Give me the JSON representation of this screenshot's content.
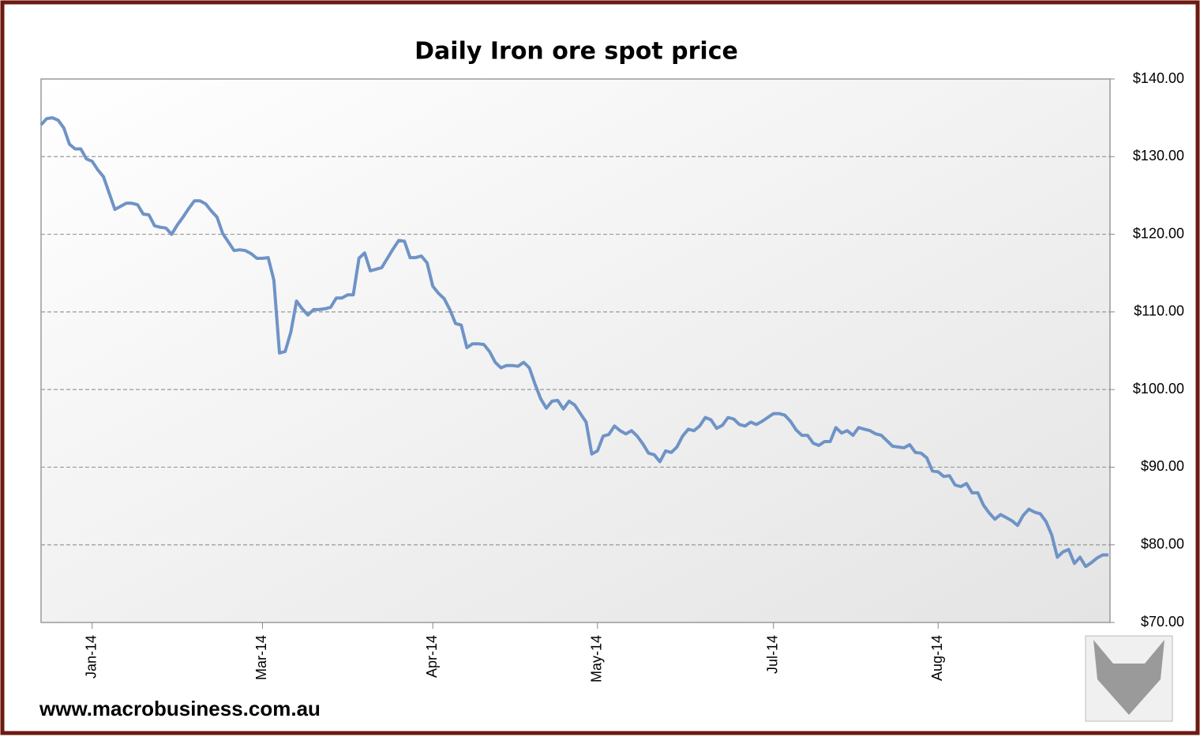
{
  "chart_data": {
    "type": "line",
    "title": "Daily Iron ore spot price",
    "footer": "www.macrobusiness.com.au",
    "color": "#6f93c6",
    "grid": true,
    "y_axis_side": "right",
    "xlim": [
      0,
      188
    ],
    "xticks": [
      {
        "value": 9,
        "label": "Jan-14"
      },
      {
        "value": 39,
        "label": "Mar-14"
      },
      {
        "value": 69,
        "label": "Apr-14"
      },
      {
        "value": 98,
        "label": "May-14"
      },
      {
        "value": 129,
        "label": "Jul-14"
      },
      {
        "value": 158,
        "label": "Aug-14"
      }
    ],
    "ylim": [
      70,
      140
    ],
    "yticks": [
      {
        "value": 70,
        "label": "$70.00"
      },
      {
        "value": 80,
        "label": "$80.00"
      },
      {
        "value": 90,
        "label": "$90.00"
      },
      {
        "value": 100,
        "label": "$100.00"
      },
      {
        "value": 110,
        "label": "$110.00"
      },
      {
        "value": 120,
        "label": "$120.00"
      },
      {
        "value": 130,
        "label": "$130.00"
      },
      {
        "value": 140,
        "label": "$140.00"
      }
    ],
    "values": [
      134.1,
      134.9,
      135,
      134.7,
      133.7,
      131.6,
      131,
      131,
      129.7,
      129.4,
      128.3,
      127.4,
      125.3,
      123.2,
      123.6,
      124,
      124,
      123.8,
      122.6,
      122.5,
      121.1,
      120.9,
      120.8,
      120,
      121.2,
      122.2,
      123.3,
      124.3,
      124.3,
      123.9,
      123,
      122.2,
      120.1,
      119,
      117.9,
      118,
      117.9,
      117.5,
      116.9,
      116.9,
      117,
      114.1,
      104.7,
      104.9,
      107.4,
      111.4,
      110.4,
      109.6,
      110.3,
      110.3,
      110.4,
      110.6,
      111.8,
      111.8,
      112.2,
      112.2,
      116.9,
      117.6,
      115.3,
      115.5,
      115.7,
      116.9,
      118.1,
      119.2,
      119.1,
      117,
      117,
      117.2,
      116.3,
      113.3,
      112.4,
      111.7,
      110.3,
      108.5,
      108.3,
      105.4,
      105.9,
      105.9,
      105.8,
      104.9,
      103.5,
      102.8,
      103.1,
      103.1,
      103,
      103.5,
      102.8,
      100.7,
      98.8,
      97.6,
      98.5,
      98.6,
      97.5,
      98.5,
      98,
      96.9,
      95.8,
      91.7,
      92.1,
      94,
      94.2,
      95.3,
      94.7,
      94.3,
      94.7,
      94,
      93,
      91.8,
      91.6,
      90.7,
      92.1,
      91.9,
      92.6,
      94,
      94.9,
      94.7,
      95.3,
      96.4,
      96.1,
      95,
      95.4,
      96.4,
      96.2,
      95.5,
      95.3,
      95.8,
      95.5,
      95.9,
      96.4,
      96.9,
      96.9,
      96.7,
      95.9,
      94.8,
      94.1,
      94.1,
      93.1,
      92.8,
      93.3,
      93.3,
      95.1,
      94.4,
      94.7,
      94.1,
      95.1,
      94.9,
      94.7,
      94.3,
      94.1,
      93.4,
      92.7,
      92.6,
      92.5,
      92.9,
      91.9,
      91.8,
      91.2,
      89.5,
      89.4,
      88.8,
      88.9,
      87.7,
      87.5,
      87.9,
      86.7,
      86.7,
      85.1,
      84.1,
      83.3,
      83.9,
      83.5,
      83.1,
      82.5,
      83.8,
      84.6,
      84.2,
      84,
      83,
      81.3,
      78.4,
      79.1,
      79.4,
      77.6,
      78.4,
      77.2,
      77.7,
      78.3,
      78.7,
      78.7
    ]
  }
}
